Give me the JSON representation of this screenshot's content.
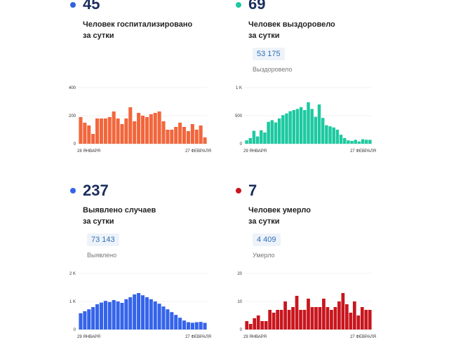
{
  "panels": [
    {
      "id": "hospitalized",
      "number": "45",
      "caption_line1": "Человек госпитализировано",
      "caption_line2": "за сутки",
      "color": "#f2663c",
      "dot_color": "#2f63d9"
    },
    {
      "id": "recovered",
      "number": "69",
      "caption_line1": "Человек выздоровело",
      "caption_line2": "за сутки",
      "total": "53 175",
      "total_label": "Выздоровело",
      "color": "#1cc9a0",
      "dot_color": "#1cc9a0"
    },
    {
      "id": "detected",
      "number": "237",
      "caption_line1": "Выявлено случаев",
      "caption_line2": "за сутки",
      "total": "73 143",
      "total_label": "Выявлено",
      "color": "#3564ea",
      "dot_color": "#3564ea"
    },
    {
      "id": "deaths",
      "number": "7",
      "caption_line1": "Человек умерло",
      "caption_line2": "за сутки",
      "total": "4 409",
      "total_label": "Умерло",
      "color": "#c8161e",
      "dot_color": "#c8161e"
    }
  ],
  "chart_data": [
    {
      "type": "bar",
      "series_key": "hospitalized",
      "color": "#f2663c",
      "ylim": [
        0,
        400
      ],
      "yticks": [
        0,
        200,
        400
      ],
      "ytick_labels": [
        "0",
        "200",
        "400"
      ],
      "x_start_label": "28 ЯНВАРЯ",
      "x_end_label": "27 ФЕВРАЛЯ",
      "values": [
        190,
        150,
        130,
        70,
        180,
        180,
        180,
        190,
        230,
        180,
        140,
        180,
        260,
        160,
        220,
        200,
        190,
        210,
        220,
        230,
        160,
        100,
        100,
        120,
        150,
        120,
        90,
        140,
        100,
        130,
        45
      ]
    },
    {
      "type": "bar",
      "series_key": "recovered",
      "color": "#1cc9a0",
      "ylim": [
        0,
        1000
      ],
      "yticks": [
        0,
        500,
        1000
      ],
      "ytick_labels": [
        "0",
        "500",
        "1 K"
      ],
      "x_start_label": "29 ЯНВАРЯ",
      "x_end_label": "27 ФЕВРАЛЯ",
      "values": [
        60,
        100,
        230,
        130,
        240,
        200,
        390,
        420,
        380,
        450,
        510,
        540,
        580,
        600,
        620,
        650,
        600,
        740,
        620,
        480,
        700,
        460,
        330,
        310,
        290,
        250,
        160,
        100,
        60,
        50,
        70,
        40,
        80,
        70,
        69
      ]
    },
    {
      "type": "bar",
      "series_key": "detected",
      "color": "#3564ea",
      "ylim": [
        0,
        2000
      ],
      "yticks": [
        0,
        1000,
        2000
      ],
      "ytick_labels": [
        "0",
        "1 K",
        "2 K"
      ],
      "x_start_label": "29 ЯНВАРЯ",
      "x_end_label": "27 ФЕВРАЛЯ",
      "values": [
        580,
        650,
        720,
        800,
        900,
        960,
        1020,
        980,
        1050,
        1000,
        950,
        1080,
        1150,
        1250,
        1300,
        1220,
        1150,
        1080,
        1000,
        920,
        820,
        720,
        620,
        520,
        420,
        320,
        260,
        240,
        260,
        270,
        237
      ]
    },
    {
      "type": "bar",
      "series_key": "deaths",
      "color": "#c8161e",
      "ylim": [
        0,
        20
      ],
      "yticks": [
        0,
        10,
        20
      ],
      "ytick_labels": [
        "0",
        "10",
        "20"
      ],
      "x_start_label": "29 ЯНВАРЯ",
      "x_end_label": "27 ФЕВРАЛЯ",
      "values": [
        3,
        2,
        4,
        5,
        3,
        3,
        7,
        6,
        7,
        7,
        10,
        7,
        8,
        12,
        7,
        7,
        11,
        8,
        8,
        8,
        11,
        8,
        7,
        8,
        10,
        13,
        9,
        6,
        10,
        5,
        8,
        7,
        7
      ]
    }
  ]
}
